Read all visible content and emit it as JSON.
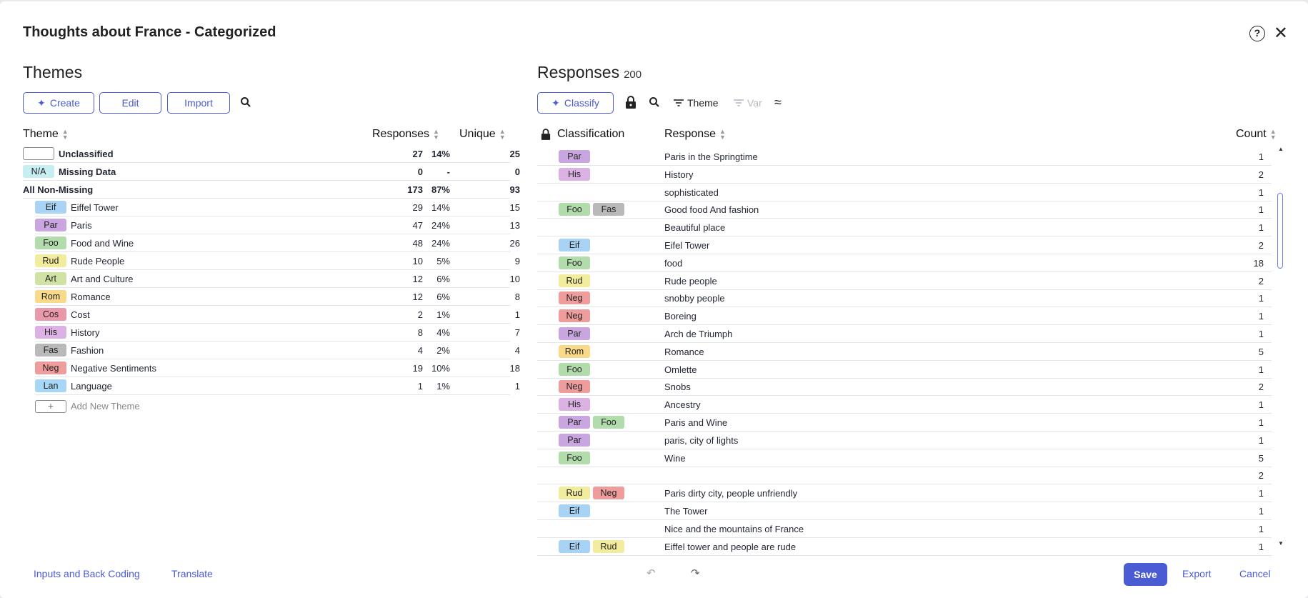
{
  "dialog": {
    "title": "Thoughts about France - Categorized"
  },
  "themes": {
    "title": "Themes",
    "buttons": {
      "create": "Create",
      "edit": "Edit",
      "import": "Import"
    },
    "headers": {
      "theme": "Theme",
      "responses": "Responses",
      "unique": "Unique"
    },
    "summary": [
      {
        "code": "",
        "name": "Unclassified",
        "responses": "27",
        "pct": "14%",
        "unique": "25",
        "color": "#ffffff"
      },
      {
        "code": "N/A",
        "name": "Missing Data",
        "responses": "0",
        "pct": "-",
        "unique": "0",
        "color": "#c7eef3"
      },
      {
        "code": "",
        "name": "All Non-Missing",
        "responses": "173",
        "pct": "87%",
        "unique": "93",
        "color": ""
      }
    ],
    "rows": [
      {
        "code": "Eif",
        "name": "Eiffel Tower",
        "responses": "29",
        "pct": "14%",
        "unique": "15",
        "color": "#a9d3f5"
      },
      {
        "code": "Par",
        "name": "Paris",
        "responses": "47",
        "pct": "24%",
        "unique": "13",
        "color": "#c9a6e0"
      },
      {
        "code": "Foo",
        "name": "Food and Wine",
        "responses": "48",
        "pct": "24%",
        "unique": "26",
        "color": "#b3dcac"
      },
      {
        "code": "Rud",
        "name": "Rude People",
        "responses": "10",
        "pct": "5%",
        "unique": "9",
        "color": "#f1ec9e"
      },
      {
        "code": "Art",
        "name": "Art and Culture",
        "responses": "12",
        "pct": "6%",
        "unique": "10",
        "color": "#d0e3a4"
      },
      {
        "code": "Rom",
        "name": "Romance",
        "responses": "12",
        "pct": "6%",
        "unique": "8",
        "color": "#f9d98a"
      },
      {
        "code": "Cos",
        "name": "Cost",
        "responses": "2",
        "pct": "1%",
        "unique": "1",
        "color": "#ea98aa"
      },
      {
        "code": "His",
        "name": "History",
        "responses": "8",
        "pct": "4%",
        "unique": "7",
        "color": "#dcb1e3"
      },
      {
        "code": "Fas",
        "name": "Fashion",
        "responses": "4",
        "pct": "2%",
        "unique": "4",
        "color": "#b9b9b9"
      },
      {
        "code": "Neg",
        "name": "Negative Sentiments",
        "responses": "19",
        "pct": "10%",
        "unique": "18",
        "color": "#ee9c9c"
      },
      {
        "code": "Lan",
        "name": "Language",
        "responses": "1",
        "pct": "1%",
        "unique": "1",
        "color": "#a6d7f6"
      }
    ],
    "add_new": "Add New Theme"
  },
  "responses": {
    "title": "Responses",
    "count": "200",
    "buttons": {
      "classify": "Classify",
      "theme_filter": "Theme",
      "var_filter": "Var"
    },
    "headers": {
      "classification": "Classification",
      "response": "Response",
      "count": "Count"
    },
    "rows": [
      {
        "tags": [
          {
            "code": "Par",
            "color": "#c9a6e0"
          }
        ],
        "text": "Paris in the Springtime",
        "count": "1"
      },
      {
        "tags": [
          {
            "code": "His",
            "color": "#dcb1e3"
          }
        ],
        "text": "History",
        "count": "2"
      },
      {
        "tags": [],
        "text": "sophisticated",
        "count": "1"
      },
      {
        "tags": [
          {
            "code": "Foo",
            "color": "#b3dcac"
          },
          {
            "code": "Fas",
            "color": "#b9b9b9"
          }
        ],
        "text": "Good food And fashion",
        "count": "1"
      },
      {
        "tags": [],
        "text": "Beautiful place",
        "count": "1"
      },
      {
        "tags": [
          {
            "code": "Eif",
            "color": "#a9d3f5"
          }
        ],
        "text": "Eifel Tower",
        "count": "2"
      },
      {
        "tags": [
          {
            "code": "Foo",
            "color": "#b3dcac"
          }
        ],
        "text": "food",
        "count": "18"
      },
      {
        "tags": [
          {
            "code": "Rud",
            "color": "#f1ec9e"
          }
        ],
        "text": "Rude people",
        "count": "2"
      },
      {
        "tags": [
          {
            "code": "Neg",
            "color": "#ee9c9c"
          }
        ],
        "text": "snobby people",
        "count": "1"
      },
      {
        "tags": [
          {
            "code": "Neg",
            "color": "#ee9c9c"
          }
        ],
        "text": "Boreing",
        "count": "1"
      },
      {
        "tags": [
          {
            "code": "Par",
            "color": "#c9a6e0"
          }
        ],
        "text": "Arch de Triumph",
        "count": "1"
      },
      {
        "tags": [
          {
            "code": "Rom",
            "color": "#f9d98a"
          }
        ],
        "text": "Romance",
        "count": "5"
      },
      {
        "tags": [
          {
            "code": "Foo",
            "color": "#b3dcac"
          }
        ],
        "text": "Omlette",
        "count": "1"
      },
      {
        "tags": [
          {
            "code": "Neg",
            "color": "#ee9c9c"
          }
        ],
        "text": "Snobs",
        "count": "2"
      },
      {
        "tags": [
          {
            "code": "His",
            "color": "#dcb1e3"
          }
        ],
        "text": "Ancestry",
        "count": "1"
      },
      {
        "tags": [
          {
            "code": "Par",
            "color": "#c9a6e0"
          },
          {
            "code": "Foo",
            "color": "#b3dcac"
          }
        ],
        "text": "Paris and Wine",
        "count": "1"
      },
      {
        "tags": [
          {
            "code": "Par",
            "color": "#c9a6e0"
          }
        ],
        "text": "paris, city of lights",
        "count": "1"
      },
      {
        "tags": [
          {
            "code": "Foo",
            "color": "#b3dcac"
          }
        ],
        "text": "Wine",
        "count": "5"
      },
      {
        "tags": [],
        "text": "",
        "count": "2"
      },
      {
        "tags": [
          {
            "code": "Rud",
            "color": "#f1ec9e"
          },
          {
            "code": "Neg",
            "color": "#ee9c9c"
          }
        ],
        "text": "Paris dirty city, people unfriendly",
        "count": "1"
      },
      {
        "tags": [
          {
            "code": "Eif",
            "color": "#a9d3f5"
          }
        ],
        "text": "The Tower",
        "count": "1"
      },
      {
        "tags": [],
        "text": "Nice and the mountains of France",
        "count": "1"
      },
      {
        "tags": [
          {
            "code": "Eif",
            "color": "#a9d3f5"
          },
          {
            "code": "Rud",
            "color": "#f1ec9e"
          }
        ],
        "text": "Eiffel tower and people are rude",
        "count": "1"
      }
    ]
  },
  "footer": {
    "inputs_link": "Inputs and Back Coding",
    "translate_link": "Translate",
    "save": "Save",
    "export": "Export",
    "cancel": "Cancel"
  },
  "colors": {
    "accent": "#4a5bd4"
  }
}
